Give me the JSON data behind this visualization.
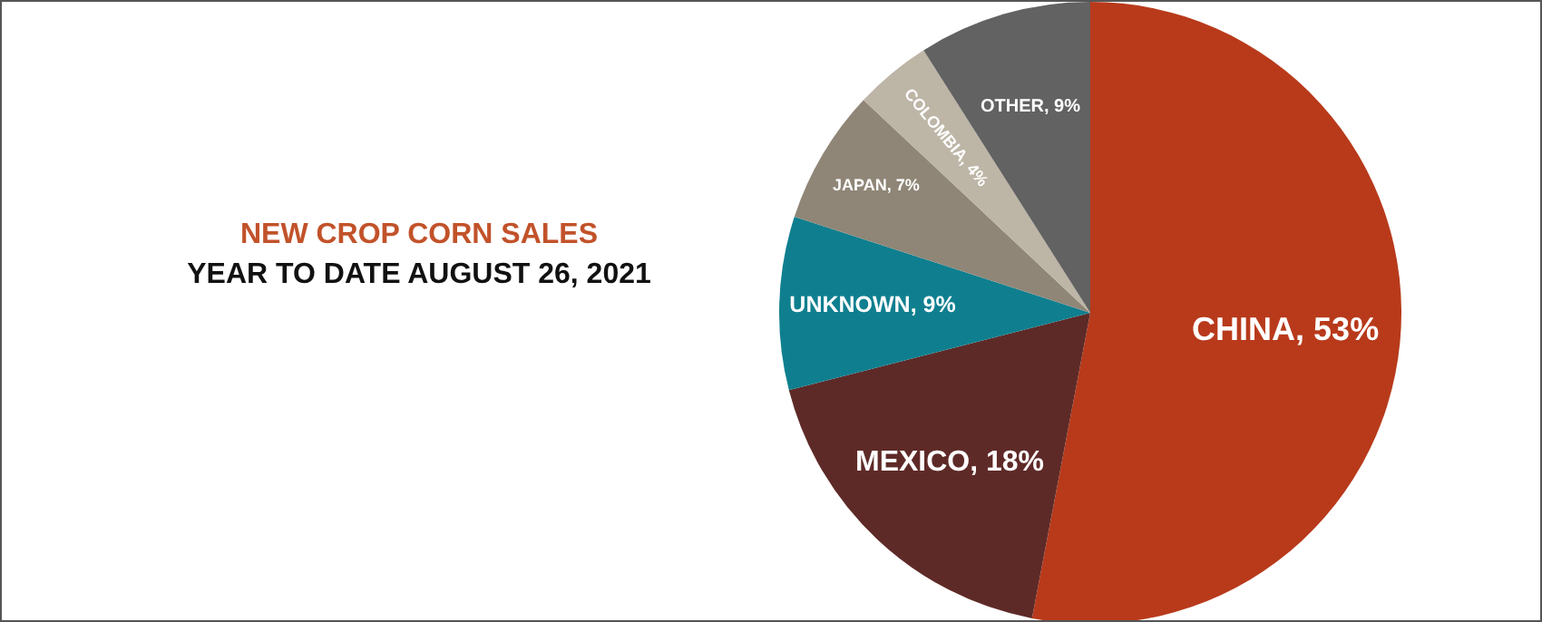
{
  "chart_data": {
    "type": "pie",
    "title": "NEW CROP CORN SALES",
    "subtitle": "YEAR TO DATE AUGUST 26, 2021",
    "categories": [
      "CHINA",
      "MEXICO",
      "UNKNOWN",
      "JAPAN",
      "COLOMBIA",
      "OTHER"
    ],
    "values": [
      53,
      18,
      9,
      7,
      4,
      9
    ],
    "colors": [
      "#b83a1b",
      "#5e2a27",
      "#0f7f8f",
      "#8f8677",
      "#bdb5a6",
      "#626262"
    ],
    "value_labels": [
      "53%",
      "18%",
      "9%",
      "7%",
      "4%",
      "9%"
    ],
    "legend": false
  }
}
